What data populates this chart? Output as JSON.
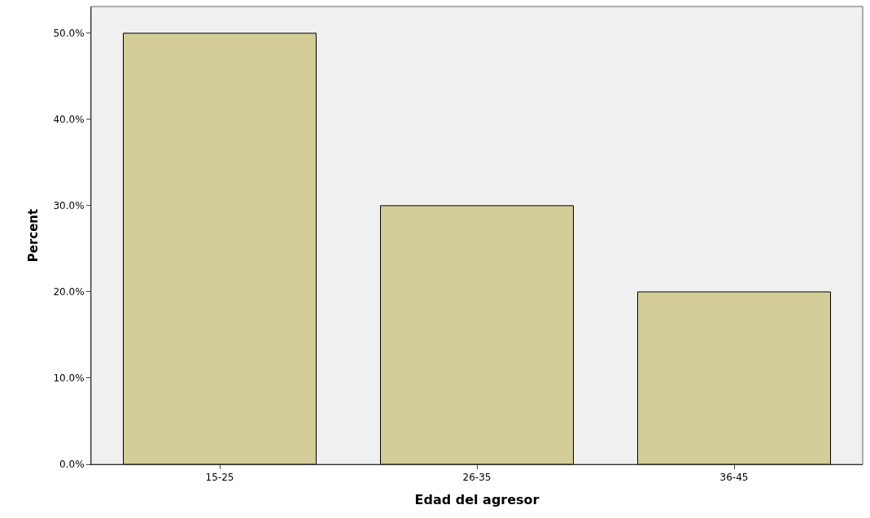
{
  "chart_data": {
    "type": "bar",
    "xlabel": "Edad del agresor",
    "ylabel": "Percent",
    "categories": [
      "15-25",
      "26-35",
      "36-45"
    ],
    "values": [
      50,
      30,
      20
    ],
    "color": "#d3ce97",
    "ylim": [
      0,
      53.1
    ],
    "yticks": [
      {
        "value": 0,
        "label": "0.0%"
      },
      {
        "value": 10,
        "label": "10.0%"
      },
      {
        "value": 20,
        "label": "20.0%"
      },
      {
        "value": 30,
        "label": "30.0%"
      },
      {
        "value": 40,
        "label": "40.0%"
      },
      {
        "value": 50,
        "label": "50.0%"
      }
    ],
    "grid": false,
    "legend": false
  }
}
